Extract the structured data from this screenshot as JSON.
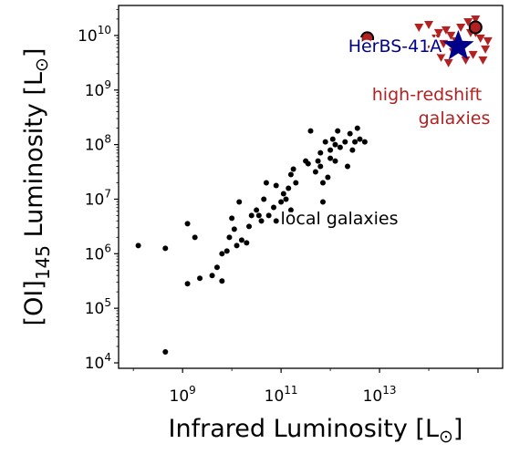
{
  "chart_data": {
    "type": "scatter",
    "title": "",
    "xlabel": {
      "main": "Infrared Luminosity [L",
      "sub": "⊙",
      "end": "]"
    },
    "ylabel": {
      "main": "[OI]",
      "subscript": "145",
      "rest": " Luminosity [L",
      "sun": "⊙",
      "end": "]"
    },
    "x_scale": "log",
    "y_scale": "log",
    "xlim_log10": [
      7.7,
      15.5
    ],
    "ylim_log10": [
      3.9,
      10.55
    ],
    "x_ticks": [
      {
        "exp": 9,
        "base": "10",
        "sup": "9"
      },
      {
        "exp": 11,
        "base": "10",
        "sup": "11"
      },
      {
        "exp": 13,
        "base": "10",
        "sup": "13"
      }
    ],
    "y_ticks": [
      {
        "exp": 4,
        "base": "10",
        "sup": "4"
      },
      {
        "exp": 5,
        "base": "10",
        "sup": "5"
      },
      {
        "exp": 6,
        "base": "10",
        "sup": "6"
      },
      {
        "exp": 7,
        "base": "10",
        "sup": "7"
      },
      {
        "exp": 8,
        "base": "10",
        "sup": "8"
      },
      {
        "exp": 9,
        "base": "10",
        "sup": "9"
      },
      {
        "exp": 10,
        "base": "10",
        "sup": "10"
      }
    ],
    "annotations": {
      "local": "local galaxies",
      "high_z_line1": "high-redshift",
      "high_z_line2": "galaxies",
      "target": "HerBS-41A"
    },
    "colors": {
      "local": "#000000",
      "high_z": "#b22222",
      "target": "#00008b",
      "target_label_bg": "#00008b",
      "high_z_label_bg": "#b22222"
    },
    "series": [
      {
        "marker": "dot",
        "points_log10": [
          [
            8.1,
            6.15
          ],
          [
            8.65,
            6.1
          ],
          [
            8.65,
            4.2
          ],
          [
            9.1,
            5.45
          ],
          [
            9.1,
            6.55
          ],
          [
            9.25,
            6.3
          ],
          [
            9.35,
            5.55
          ],
          [
            9.6,
            5.6
          ],
          [
            9.7,
            5.75
          ],
          [
            9.8,
            5.5
          ],
          [
            9.8,
            6.0
          ],
          [
            9.9,
            6.05
          ],
          [
            9.95,
            6.3
          ],
          [
            10.0,
            6.65
          ],
          [
            10.05,
            6.45
          ],
          [
            10.1,
            6.15
          ],
          [
            10.15,
            6.95
          ],
          [
            10.2,
            6.25
          ],
          [
            10.3,
            6.2
          ],
          [
            10.35,
            6.5
          ],
          [
            10.4,
            6.7
          ],
          [
            10.5,
            6.8
          ],
          [
            10.55,
            6.7
          ],
          [
            10.6,
            6.6
          ],
          [
            10.65,
            7.0
          ],
          [
            10.7,
            7.3
          ],
          [
            10.75,
            6.7
          ],
          [
            10.85,
            6.85
          ],
          [
            10.9,
            6.6
          ],
          [
            10.9,
            7.25
          ],
          [
            11.0,
            6.95
          ],
          [
            11.05,
            7.1
          ],
          [
            11.1,
            7.0
          ],
          [
            11.15,
            7.2
          ],
          [
            11.2,
            6.8
          ],
          [
            11.2,
            7.45
          ],
          [
            11.25,
            7.55
          ],
          [
            11.3,
            7.3
          ],
          [
            11.5,
            7.7
          ],
          [
            11.55,
            7.65
          ],
          [
            11.6,
            8.25
          ],
          [
            11.7,
            7.5
          ],
          [
            11.75,
            7.7
          ],
          [
            11.8,
            7.6
          ],
          [
            11.8,
            7.85
          ],
          [
            11.85,
            6.95
          ],
          [
            11.85,
            7.3
          ],
          [
            11.9,
            8.05
          ],
          [
            11.95,
            7.4
          ],
          [
            12.0,
            7.75
          ],
          [
            12.0,
            7.9
          ],
          [
            12.05,
            8.1
          ],
          [
            12.1,
            7.7
          ],
          [
            12.1,
            8.0
          ],
          [
            12.15,
            8.25
          ],
          [
            12.2,
            7.95
          ],
          [
            12.3,
            8.05
          ],
          [
            12.35,
            7.6
          ],
          [
            12.4,
            8.2
          ],
          [
            12.45,
            7.9
          ],
          [
            12.5,
            8.05
          ],
          [
            12.55,
            8.3
          ],
          [
            12.6,
            8.1
          ],
          [
            12.7,
            8.05
          ]
        ]
      },
      {
        "marker": "triangle_down",
        "points_log10": [
          [
            13.8,
            10.15
          ],
          [
            14.0,
            10.2
          ],
          [
            14.05,
            9.75
          ],
          [
            14.15,
            9.95
          ],
          [
            14.2,
            10.05
          ],
          [
            14.25,
            9.6
          ],
          [
            14.3,
            9.85
          ],
          [
            14.35,
            10.1
          ],
          [
            14.45,
            10.0
          ],
          [
            14.5,
            9.7
          ],
          [
            14.55,
            9.9
          ],
          [
            14.65,
            10.15
          ],
          [
            14.7,
            9.8
          ],
          [
            14.75,
            9.55
          ],
          [
            14.8,
            10.25
          ],
          [
            14.85,
            10.05
          ],
          [
            14.9,
            9.65
          ],
          [
            14.95,
            10.05
          ],
          [
            15.05,
            9.95
          ],
          [
            15.1,
            9.55
          ],
          [
            15.15,
            9.75
          ],
          [
            15.2,
            9.9
          ],
          [
            14.4,
            9.5
          ],
          [
            14.95,
            10.3
          ]
        ]
      },
      {
        "marker": "circle",
        "points_log10": [
          [
            12.75,
            9.95
          ],
          [
            14.95,
            10.15
          ]
        ]
      },
      {
        "marker": "star",
        "points_log10": [
          [
            14.6,
            9.8
          ]
        ]
      }
    ]
  }
}
